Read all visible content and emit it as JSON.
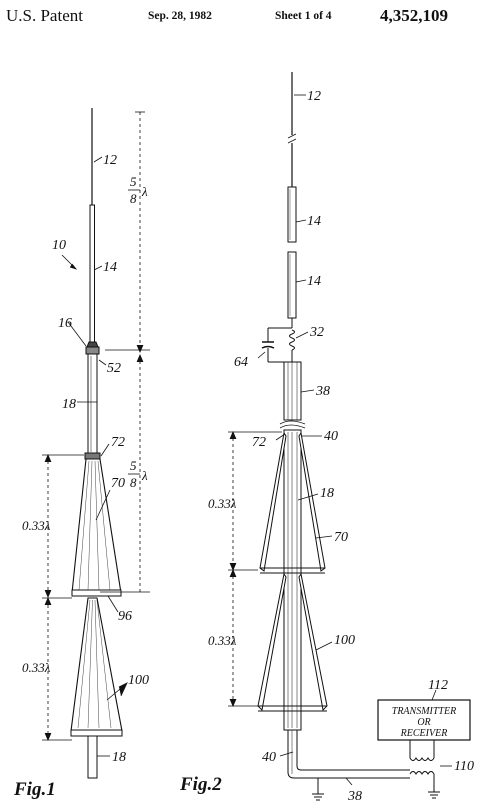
{
  "header": {
    "title": "U.S. Patent",
    "date": "Sep. 28, 1982",
    "sheet": "Sheet 1 of 4",
    "patent_number": "4,352,109"
  },
  "fig1": {
    "caption": "Fig.1",
    "labels": {
      "l12": "12",
      "l14": "14",
      "l10": "10",
      "l16": "16",
      "l52": "52",
      "l18a": "18",
      "l72": "72",
      "l70": "70",
      "l96": "96",
      "l100": "100",
      "l18b": "18",
      "dim_a": "0.33λ",
      "dim_b": "0.33λ",
      "frac_top_num": "5",
      "frac_top_den": "8",
      "frac_top_sym": "λ",
      "frac_bot_num": "5",
      "frac_bot_den": "8",
      "frac_bot_sym": "λ"
    }
  },
  "fig2": {
    "caption": "Fig.2",
    "labels": {
      "l12": "12",
      "l14a": "14",
      "l14b": "14",
      "l32": "32",
      "l64": "64",
      "l38a": "38",
      "l72": "72",
      "l40a": "40",
      "l18": "18",
      "l70": "70",
      "l100": "100",
      "l40b": "40",
      "l38b": "38",
      "l110": "110",
      "l112": "112",
      "dim_a": "0.33λ",
      "dim_b": "0.33λ",
      "box_line1": "TRANSMITTER",
      "box_line2": "OR",
      "box_line3": "RECEIVER"
    }
  }
}
